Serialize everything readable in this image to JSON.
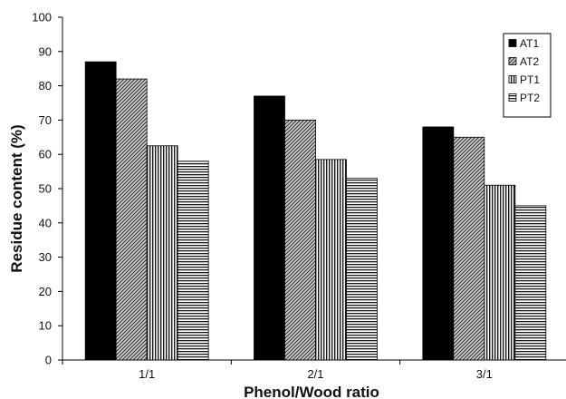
{
  "chart_data": {
    "type": "bar",
    "title": "",
    "xlabel": "Phenol/Wood ratio",
    "ylabel": "Residue content (%)",
    "categories": [
      "1/1",
      "2/1",
      "3/1"
    ],
    "ylim": [
      0,
      100
    ],
    "yticks": [
      0,
      10,
      20,
      30,
      40,
      50,
      60,
      70,
      80,
      90,
      100
    ],
    "grid": false,
    "legend_position": "top-right",
    "series": [
      {
        "name": "AT1",
        "values": [
          87,
          77,
          68
        ],
        "pattern": "solid-black"
      },
      {
        "name": "AT2",
        "values": [
          82,
          70,
          65
        ],
        "pattern": "diagonal-hatch"
      },
      {
        "name": "PT1",
        "values": [
          62.5,
          58.5,
          51
        ],
        "pattern": "vertical-lines"
      },
      {
        "name": "PT2",
        "values": [
          58,
          53,
          45
        ],
        "pattern": "horizontal-lines"
      }
    ]
  }
}
